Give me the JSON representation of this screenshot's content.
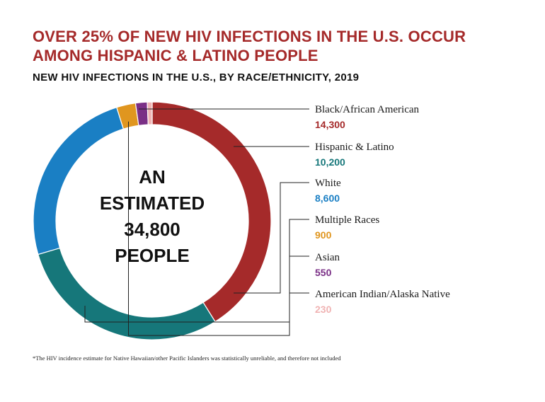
{
  "chart_data": {
    "type": "pie",
    "variant": "donut",
    "title": "OVER 25% OF NEW HIV INFECTIONS IN THE U.S. OCCUR AMONG HISPANIC & LATINO PEOPLE",
    "subtitle": "NEW HIV INFECTIONS IN THE U.S., BY RACE/ETHNICITY, 2019",
    "center_text": [
      "AN",
      "ESTIMATED",
      "34,800",
      "PEOPLE"
    ],
    "slices": [
      {
        "name": "Black/African American",
        "value": 14300,
        "label": "14,300",
        "color": "#a52a2a"
      },
      {
        "name": "Hispanic & Latino",
        "value": 10200,
        "label": "10,200",
        "color": "#16777a"
      },
      {
        "name": "White",
        "value": 8600,
        "label": "8,600",
        "color": "#1a7fc4"
      },
      {
        "name": "Multiple Races",
        "value": 900,
        "label": "900",
        "color": "#e0961f"
      },
      {
        "name": "Asian",
        "value": 550,
        "label": "550",
        "color": "#7a2f86"
      },
      {
        "name": "American Indian/Alaska Native",
        "value": 230,
        "label": "230",
        "color": "#f0b3b3"
      }
    ],
    "legend_position": "right",
    "footnote": "*The HIV incidence estimate for Native Hawaiian/other Pacific Islanders was statistically unreliable, and therefore not included"
  }
}
